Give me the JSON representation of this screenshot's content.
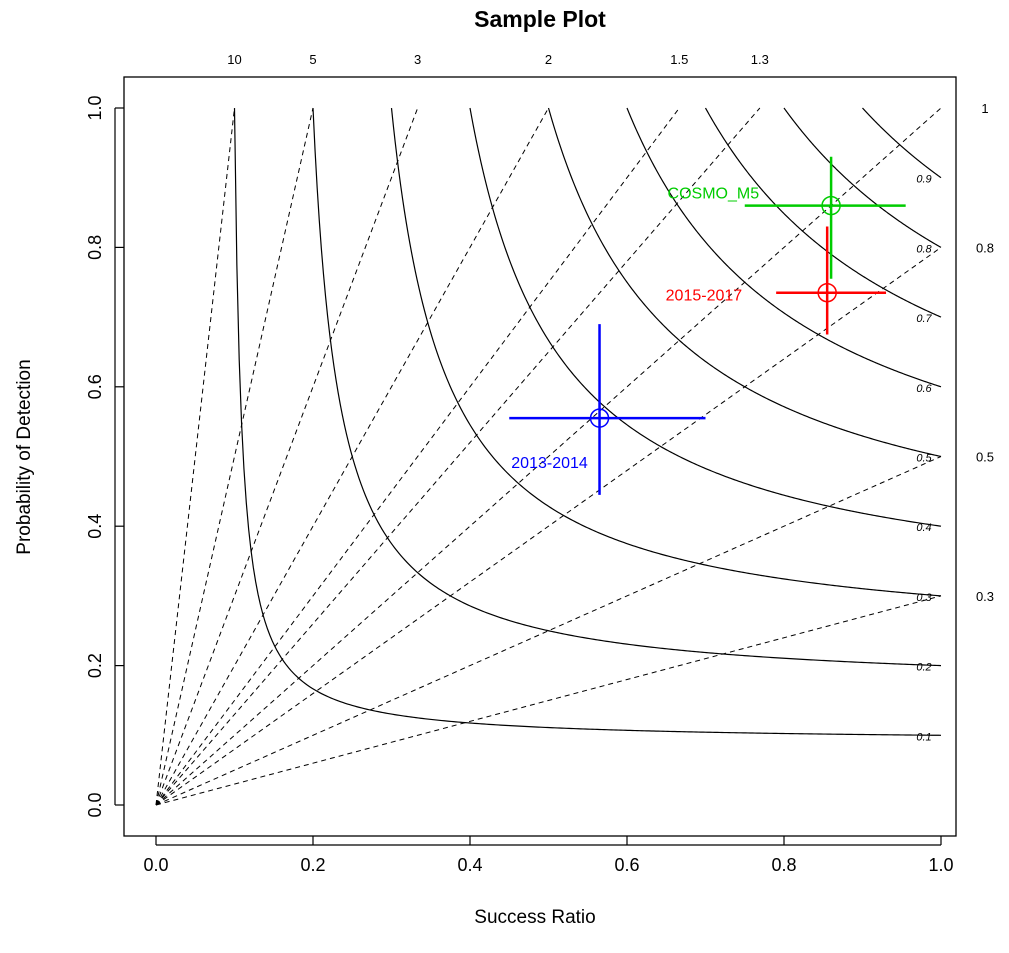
{
  "chart_data": {
    "type": "scatter",
    "subtype": "performance-diagram",
    "title": "Sample Plot",
    "xlabel": "Success Ratio",
    "ylabel": "Probability of Detection",
    "xlim": [
      0,
      1
    ],
    "ylim": [
      0,
      1
    ],
    "x_ticks": [
      "0.0",
      "0.2",
      "0.4",
      "0.6",
      "0.8",
      "1.0"
    ],
    "y_ticks": [
      "0.0",
      "0.2",
      "0.4",
      "0.6",
      "0.8",
      "1.0"
    ],
    "grid": false,
    "bias_lines": [
      {
        "bias": 10,
        "label": "10"
      },
      {
        "bias": 5,
        "label": "5"
      },
      {
        "bias": 3,
        "label": "3"
      },
      {
        "bias": 2,
        "label": "2"
      },
      {
        "bias": 1.5,
        "label": "1.5"
      },
      {
        "bias": 1.3,
        "label": "1.3"
      },
      {
        "bias": 1,
        "label": "1"
      },
      {
        "bias": 0.8,
        "label": "0.8"
      },
      {
        "bias": 0.5,
        "label": "0.5"
      },
      {
        "bias": 0.3,
        "label": "0.3"
      }
    ],
    "csi_contours": [
      {
        "csi": 0.1,
        "label": "0.1"
      },
      {
        "csi": 0.2,
        "label": "0.2"
      },
      {
        "csi": 0.3,
        "label": "0.3"
      },
      {
        "csi": 0.4,
        "label": "0.4"
      },
      {
        "csi": 0.5,
        "label": "0.5"
      },
      {
        "csi": 0.6,
        "label": "0.6"
      },
      {
        "csi": 0.7,
        "label": "0.7"
      },
      {
        "csi": 0.8,
        "label": "0.8"
      },
      {
        "csi": 0.9,
        "label": "0.9"
      }
    ],
    "series": [
      {
        "name": "2013-2014",
        "color": "#0000ff",
        "x": 0.565,
        "y": 0.555,
        "x_range": [
          0.45,
          0.7
        ],
        "y_range": [
          0.445,
          0.69
        ]
      },
      {
        "name": "2015-2017",
        "color": "#ff0000",
        "x": 0.855,
        "y": 0.735,
        "x_range": [
          0.79,
          0.93
        ],
        "y_range": [
          0.675,
          0.83
        ]
      },
      {
        "name": "COSMO_M5",
        "color": "#00cc00",
        "x": 0.86,
        "y": 0.86,
        "x_range": [
          0.75,
          0.955
        ],
        "y_range": [
          0.755,
          0.93
        ]
      }
    ]
  }
}
